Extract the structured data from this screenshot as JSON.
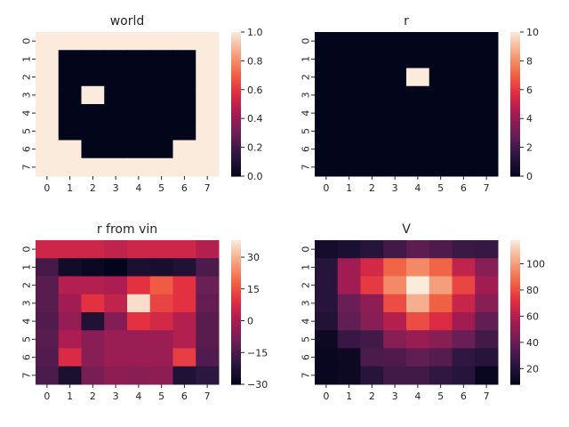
{
  "chart_data": [
    {
      "type": "heatmap",
      "title": "world",
      "x": [
        "0",
        "1",
        "2",
        "3",
        "4",
        "5",
        "6",
        "7"
      ],
      "y": [
        "0",
        "1",
        "2",
        "3",
        "4",
        "5",
        "6",
        "7"
      ],
      "z": [
        [
          1,
          1,
          1,
          1,
          1,
          1,
          1,
          1
        ],
        [
          1,
          0,
          0,
          0,
          0,
          0,
          0,
          1
        ],
        [
          1,
          0,
          0,
          0,
          0,
          0,
          0,
          1
        ],
        [
          1,
          0,
          1,
          0,
          0,
          0,
          0,
          1
        ],
        [
          1,
          0,
          0,
          0,
          0,
          0,
          0,
          1
        ],
        [
          1,
          0,
          0,
          0,
          0,
          0,
          0,
          1
        ],
        [
          1,
          1,
          0,
          0,
          0,
          0,
          1,
          1
        ],
        [
          1,
          1,
          1,
          1,
          1,
          1,
          1,
          1
        ]
      ],
      "vmin": 0,
      "vmax": 1,
      "colorbar_ticks": [
        "0.0",
        "0.2",
        "0.4",
        "0.6",
        "0.8",
        "1.0"
      ],
      "colorbar_values": [
        0,
        0.2,
        0.4,
        0.6,
        0.8,
        1.0
      ],
      "colormap": "rocket"
    },
    {
      "type": "heatmap",
      "title": "r",
      "x": [
        "0",
        "1",
        "2",
        "3",
        "4",
        "5",
        "6",
        "7"
      ],
      "y": [
        "0",
        "1",
        "2",
        "3",
        "4",
        "5",
        "6",
        "7"
      ],
      "z": [
        [
          0,
          0,
          0,
          0,
          0,
          0,
          0,
          0
        ],
        [
          0,
          0,
          0,
          0,
          0,
          0,
          0,
          0
        ],
        [
          0,
          0,
          0,
          0,
          10,
          0,
          0,
          0
        ],
        [
          0,
          0,
          0,
          0,
          0,
          0,
          0,
          0
        ],
        [
          0,
          0,
          0,
          0,
          0,
          0,
          0,
          0
        ],
        [
          0,
          0,
          0,
          0,
          0,
          0,
          0,
          0
        ],
        [
          0,
          0,
          0,
          0,
          0,
          0,
          0,
          0
        ],
        [
          0,
          0,
          0,
          0,
          0,
          0,
          0,
          0
        ]
      ],
      "vmin": 0,
      "vmax": 10,
      "colorbar_ticks": [
        "0",
        "2",
        "4",
        "6",
        "8",
        "10"
      ],
      "colorbar_values": [
        0,
        2,
        4,
        6,
        8,
        10
      ],
      "colormap": "rocket"
    },
    {
      "type": "heatmap",
      "title": "r from vin",
      "x": [
        "0",
        "1",
        "2",
        "3",
        "4",
        "5",
        "6",
        "7"
      ],
      "y": [
        "0",
        "1",
        "2",
        "3",
        "4",
        "5",
        "6",
        "7"
      ],
      "z": [
        [
          6,
          6,
          6,
          4,
          6,
          6,
          6,
          2
        ],
        [
          -16,
          -26,
          -28,
          -30,
          -24,
          -25,
          -23,
          -15
        ],
        [
          -13,
          2,
          2,
          1,
          10,
          17,
          10,
          -10
        ],
        [
          -13,
          -1,
          10,
          4,
          36,
          13,
          10,
          -11
        ],
        [
          -14,
          -3,
          -23,
          -6,
          10,
          7,
          2,
          -13
        ],
        [
          -13,
          1,
          -5,
          -2,
          -2,
          -2,
          2,
          -13
        ],
        [
          -14,
          8,
          -5,
          -2,
          -2,
          -2,
          12,
          -14
        ],
        [
          -15,
          -24,
          -8,
          -4,
          -5,
          -4,
          -23,
          -20
        ]
      ],
      "vmin": -30,
      "vmax": 38,
      "colorbar_ticks": [
        "−30",
        "−15",
        "0",
        "15",
        "30"
      ],
      "colorbar_values": [
        -30,
        -15,
        0,
        15,
        30
      ],
      "colormap": "rocket"
    },
    {
      "type": "heatmap",
      "title": "V",
      "x": [
        "0",
        "1",
        "2",
        "3",
        "4",
        "5",
        "6",
        "7"
      ],
      "y": [
        "0",
        "1",
        "2",
        "3",
        "4",
        "5",
        "6",
        "7"
      ],
      "z": [
        [
          15,
          18,
          22,
          30,
          37,
          33,
          28,
          27
        ],
        [
          22,
          55,
          68,
          86,
          95,
          86,
          63,
          48
        ],
        [
          22,
          55,
          75,
          95,
          118,
          100,
          78,
          55
        ],
        [
          22,
          40,
          50,
          80,
          104,
          85,
          65,
          48
        ],
        [
          20,
          38,
          48,
          60,
          80,
          70,
          55,
          38
        ],
        [
          12,
          27,
          30,
          48,
          53,
          48,
          40,
          30
        ],
        [
          10,
          12,
          32,
          33,
          38,
          35,
          25,
          22
        ],
        [
          10,
          12,
          22,
          30,
          30,
          25,
          22,
          10
        ]
      ],
      "vmin": 8,
      "vmax": 118,
      "colorbar_ticks": [
        "20",
        "40",
        "60",
        "80",
        "100"
      ],
      "colorbar_values": [
        20,
        40,
        60,
        80,
        100
      ],
      "colormap": "rocket"
    }
  ]
}
